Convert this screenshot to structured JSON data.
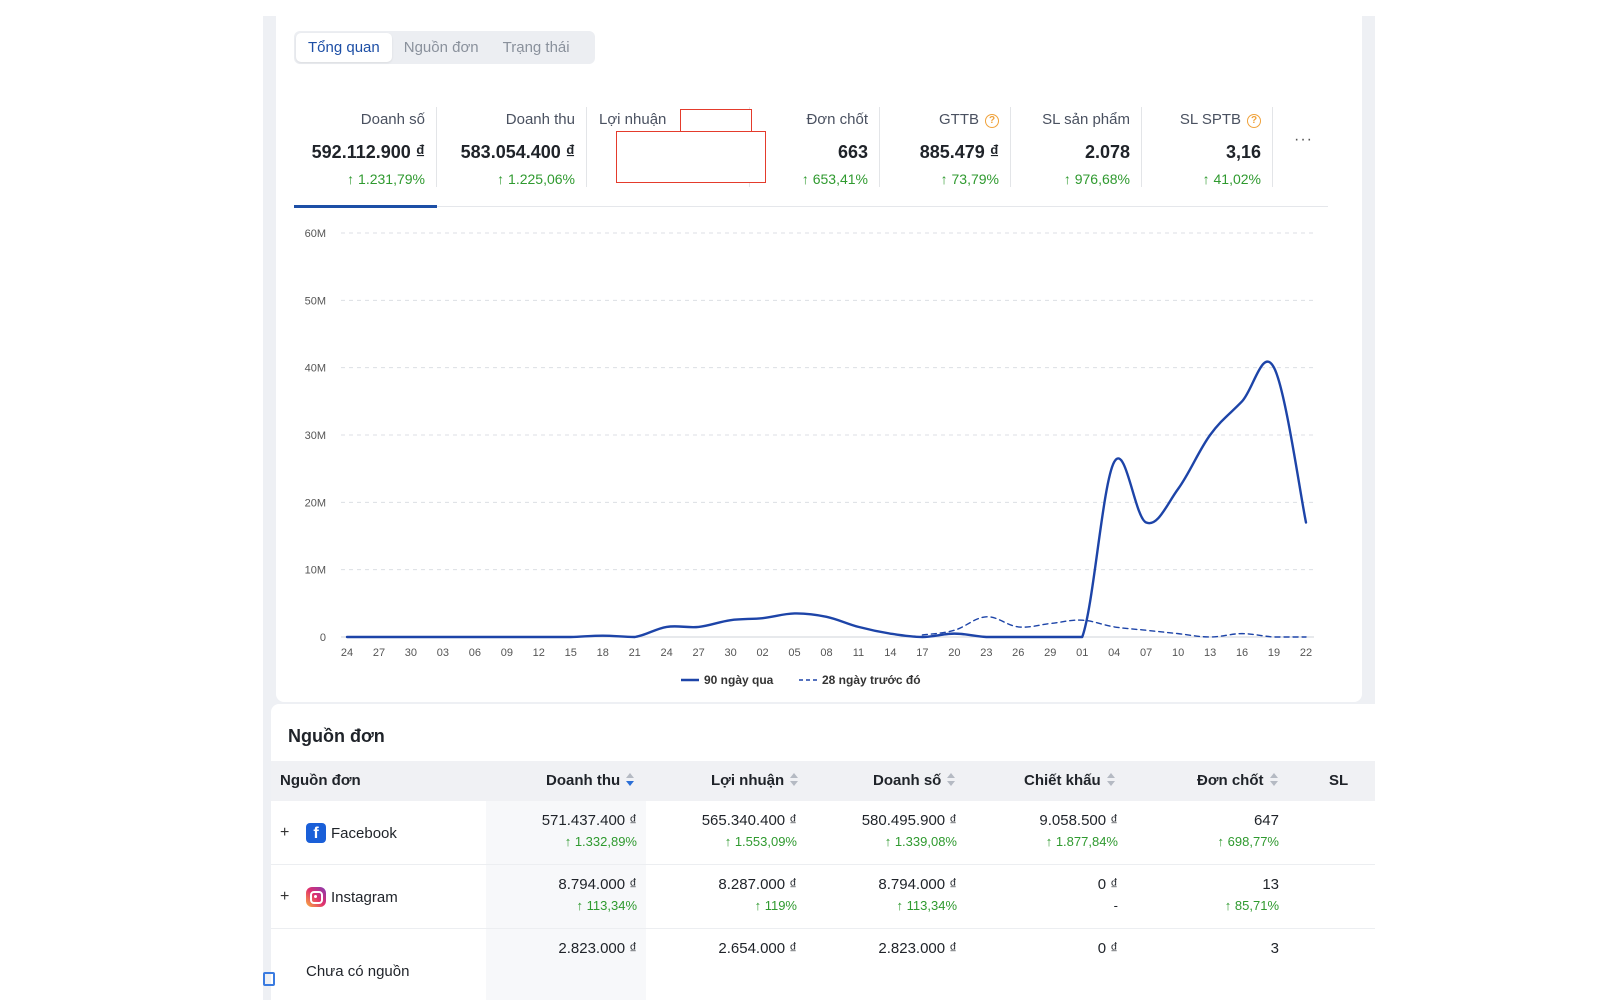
{
  "tabs": [
    "Tổng quan",
    "Nguồn đơn",
    "Trạng thái"
  ],
  "metrics": [
    {
      "label": "Doanh số",
      "value": "592.112.900 ₫",
      "change": "1.231,79%"
    },
    {
      "label": "Doanh thu",
      "value": "583.054.400 ₫",
      "change": "1.225,06%"
    },
    {
      "label": "Lợi nhuận",
      "value": "",
      "change": ""
    },
    {
      "label": "Đơn chốt",
      "value": "663",
      "change": "653,41%"
    },
    {
      "label": "GTTB",
      "value": "885.479 ₫",
      "change": "73,79%"
    },
    {
      "label": "SL sản phẩm",
      "value": "2.078",
      "change": "976,68%"
    },
    {
      "label": "SL SPTB",
      "value": "3,16",
      "change": "41,02%"
    }
  ],
  "more_label": "···",
  "chart_data": {
    "type": "line",
    "x": [
      "24",
      "27",
      "30",
      "03",
      "06",
      "09",
      "12",
      "15",
      "18",
      "21",
      "24",
      "27",
      "30",
      "02",
      "05",
      "08",
      "11",
      "14",
      "17",
      "20",
      "23",
      "26",
      "29",
      "01",
      "04",
      "07",
      "10",
      "13",
      "16",
      "19",
      "22"
    ],
    "ylim": [
      0,
      60
    ],
    "yticks": [
      "0",
      "10M",
      "20M",
      "30M",
      "40M",
      "50M",
      "60M"
    ],
    "series": [
      {
        "name": "90 ngày qua",
        "color": "#1d44a8",
        "dash": false,
        "values": [
          0,
          0,
          0,
          0,
          0,
          0,
          0,
          0,
          0.2,
          0,
          1.5,
          1.5,
          2.5,
          2.8,
          3.5,
          3,
          1.5,
          0.5,
          0,
          0.5,
          0,
          0,
          0,
          0,
          26,
          17,
          22,
          30,
          35,
          40,
          17
        ]
      },
      {
        "name": "28 ngày trước đó",
        "color": "#1d44a8",
        "dash": true,
        "values": [
          null,
          null,
          null,
          null,
          null,
          null,
          null,
          null,
          null,
          null,
          null,
          null,
          null,
          null,
          null,
          null,
          null,
          null,
          0.3,
          1,
          3,
          1.5,
          2,
          2.5,
          1.5,
          1,
          0.5,
          0,
          0.5,
          0,
          0
        ]
      }
    ]
  },
  "table": {
    "title": "Nguồn đơn",
    "headers": [
      "Nguồn đơn",
      "Doanh thu",
      "Lợi nhuận",
      "Doanh số",
      "Chiết khấu",
      "Đơn chốt",
      "SL"
    ],
    "rows": [
      {
        "source": "Facebook",
        "icon": "facebook-icon",
        "cells": [
          [
            "571.437.400 ₫",
            "1.332,89%"
          ],
          [
            "565.340.400 ₫",
            "1.553,09%"
          ],
          [
            "580.495.900 ₫",
            "1.339,08%"
          ],
          [
            "9.058.500 ₫",
            "1.877,84%"
          ],
          [
            "647",
            "698,77%"
          ]
        ]
      },
      {
        "source": "Instagram",
        "icon": "instagram-icon",
        "cells": [
          [
            "8.794.000 ₫",
            "113,34%"
          ],
          [
            "8.287.000 ₫",
            "119%"
          ],
          [
            "8.794.000 ₫",
            "113,34%"
          ],
          [
            "0 ₫",
            "-"
          ],
          [
            "13",
            "85,71%"
          ]
        ]
      },
      {
        "source": "Chưa có nguồn",
        "icon": "",
        "cells": [
          [
            "2.823.000 ₫",
            ""
          ],
          [
            "2.654.000 ₫",
            ""
          ],
          [
            "2.823.000 ₫",
            ""
          ],
          [
            "0 ₫",
            ""
          ],
          [
            "3",
            ""
          ]
        ]
      }
    ]
  }
}
